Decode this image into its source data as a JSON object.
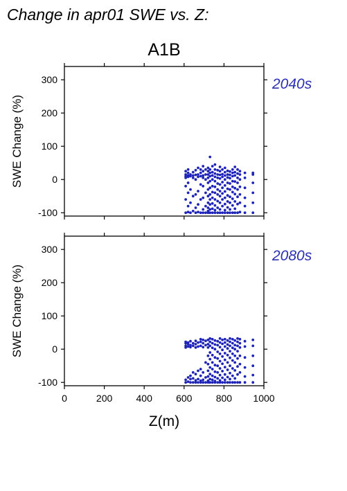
{
  "title": "Change in apr01 SWE vs. Z:",
  "scenario": "A1B",
  "colors": {
    "points": "#1f24b8",
    "period_label": "#2a2fb3",
    "axes": "#000000"
  },
  "chart_data": [
    {
      "type": "scatter",
      "period": "2040s",
      "xlabel": "",
      "ylabel": "SWE Change (%)",
      "xlim": [
        0,
        1000
      ],
      "ylim": [
        -110,
        340
      ],
      "x_ticks": [],
      "y_ticks": [
        -100,
        0,
        100,
        200,
        300
      ],
      "grid": false,
      "columns": [
        {
          "x": 608,
          "y": [
            -100,
            -60,
            -20,
            5,
            10,
            15,
            25
          ]
        },
        {
          "x": 620,
          "y": [
            -98,
            -80,
            -40,
            -10,
            8,
            12,
            20,
            30
          ]
        },
        {
          "x": 632,
          "y": [
            -100,
            -70,
            -30,
            10,
            15
          ]
        },
        {
          "x": 645,
          "y": [
            -95,
            -50,
            5,
            12,
            22
          ]
        },
        {
          "x": 658,
          "y": [
            -100,
            -85,
            -45,
            0,
            14,
            28
          ]
        },
        {
          "x": 670,
          "y": [
            -98,
            -75,
            -35,
            8,
            15,
            35
          ]
        },
        {
          "x": 683,
          "y": [
            -100,
            -60,
            -15,
            10,
            20,
            30
          ]
        },
        {
          "x": 695,
          "y": [
            -100,
            -90,
            -55,
            -20,
            5,
            12,
            25,
            40
          ]
        },
        {
          "x": 708,
          "y": [
            -100,
            -80,
            -40,
            0,
            15,
            30
          ]
        },
        {
          "x": 720,
          "y": [
            -100,
            -95,
            -85,
            -70,
            -50,
            -30,
            -10,
            5,
            15,
            25,
            35
          ]
        },
        {
          "x": 730,
          "y": [
            -100,
            -90,
            -75,
            -60,
            -45,
            -25,
            -5,
            10,
            20,
            30,
            68
          ]
        },
        {
          "x": 742,
          "y": [
            -100,
            -88,
            -72,
            -55,
            -38,
            -20,
            0,
            12,
            22,
            40
          ]
        },
        {
          "x": 755,
          "y": [
            -100,
            -92,
            -78,
            -60,
            -40,
            -22,
            -5,
            8,
            18,
            30,
            45
          ]
        },
        {
          "x": 768,
          "y": [
            -100,
            -85,
            -65,
            -45,
            -30,
            -12,
            5,
            15,
            28
          ]
        },
        {
          "x": 780,
          "y": [
            -100,
            -90,
            -70,
            -50,
            -35,
            -15,
            3,
            14,
            25,
            38
          ]
        },
        {
          "x": 792,
          "y": [
            -100,
            -80,
            -60,
            -42,
            -25,
            -8,
            8,
            16,
            30
          ]
        },
        {
          "x": 805,
          "y": [
            -100,
            -92,
            -74,
            -55,
            -36,
            -18,
            0,
            12,
            22,
            35
          ]
        },
        {
          "x": 818,
          "y": [
            -100,
            -84,
            -66,
            -48,
            -28,
            -10,
            6,
            15,
            26
          ]
        },
        {
          "x": 830,
          "y": [
            -100,
            -90,
            -70,
            -52,
            -30,
            -12,
            4,
            14,
            24
          ]
        },
        {
          "x": 843,
          "y": [
            -100,
            -78,
            -58,
            -38,
            -22,
            -5,
            10,
            20,
            30
          ]
        },
        {
          "x": 855,
          "y": [
            -100,
            -88,
            -66,
            -44,
            -26,
            -6,
            12,
            22,
            38
          ]
        },
        {
          "x": 868,
          "y": [
            -100,
            -74,
            -52,
            -30,
            -10,
            5,
            18,
            30
          ]
        },
        {
          "x": 880,
          "y": [
            -98,
            -70,
            -45,
            -22,
            0,
            15,
            25
          ]
        },
        {
          "x": 905,
          "y": [
            -100,
            -80,
            -55,
            -25,
            5,
            20
          ]
        },
        {
          "x": 945,
          "y": [
            -100,
            -70,
            -40,
            -10,
            15,
            20
          ]
        }
      ]
    },
    {
      "type": "scatter",
      "period": "2080s",
      "xlabel": "Z(m)",
      "ylabel": "SWE Change (%)",
      "xlim": [
        0,
        1000
      ],
      "ylim": [
        -110,
        340
      ],
      "x_ticks": [
        0,
        200,
        400,
        600,
        800,
        1000
      ],
      "y_ticks": [
        -100,
        0,
        100,
        200,
        300
      ],
      "grid": false,
      "columns": [
        {
          "x": 608,
          "y": [
            -100,
            -92,
            5,
            10,
            18,
            22
          ]
        },
        {
          "x": 620,
          "y": [
            -98,
            -85,
            8,
            15,
            20
          ]
        },
        {
          "x": 632,
          "y": [
            -100,
            -90,
            -80,
            6,
            12,
            24
          ]
        },
        {
          "x": 645,
          "y": [
            -100,
            -88,
            -70,
            10,
            18
          ]
        },
        {
          "x": 658,
          "y": [
            -100,
            -94,
            -75,
            5,
            15,
            25
          ]
        },
        {
          "x": 670,
          "y": [
            -100,
            -90,
            -65,
            8,
            20
          ]
        },
        {
          "x": 683,
          "y": [
            -100,
            -95,
            -80,
            -60,
            10,
            22,
            30
          ]
        },
        {
          "x": 695,
          "y": [
            -100,
            -92,
            -70,
            6,
            18,
            28
          ]
        },
        {
          "x": 708,
          "y": [
            -100,
            -85,
            -40,
            12,
            25
          ]
        },
        {
          "x": 720,
          "y": [
            -100,
            -95,
            -82,
            -65,
            -45,
            -20,
            5,
            15,
            28
          ]
        },
        {
          "x": 730,
          "y": [
            -100,
            -90,
            -75,
            -55,
            -30,
            -10,
            10,
            22,
            32
          ]
        },
        {
          "x": 742,
          "y": [
            -100,
            -92,
            -80,
            -60,
            -40,
            -18,
            4,
            18,
            30
          ]
        },
        {
          "x": 755,
          "y": [
            -100,
            -96,
            -84,
            -68,
            -48,
            -25,
            0,
            14,
            26
          ]
        },
        {
          "x": 768,
          "y": [
            -100,
            -88,
            -70,
            -50,
            -28,
            -8,
            12,
            24
          ]
        },
        {
          "x": 780,
          "y": [
            -100,
            -94,
            -78,
            -58,
            -36,
            -14,
            6,
            20,
            32
          ]
        },
        {
          "x": 792,
          "y": [
            -100,
            -86,
            -66,
            -44,
            -22,
            -2,
            16,
            28
          ]
        },
        {
          "x": 805,
          "y": [
            -100,
            -92,
            -76,
            -54,
            -32,
            -12,
            8,
            20,
            30
          ]
        },
        {
          "x": 818,
          "y": [
            -100,
            -84,
            -62,
            -40,
            -18,
            2,
            14,
            26
          ]
        },
        {
          "x": 830,
          "y": [
            -100,
            -90,
            -72,
            -50,
            -26,
            -6,
            10,
            22,
            32
          ]
        },
        {
          "x": 843,
          "y": [
            -100,
            -80,
            -58,
            -34,
            -14,
            4,
            18,
            30
          ]
        },
        {
          "x": 855,
          "y": [
            -100,
            -88,
            -64,
            -40,
            -20,
            0,
            12,
            26
          ]
        },
        {
          "x": 868,
          "y": [
            -100,
            -76,
            -52,
            -28,
            -6,
            10,
            22,
            32
          ]
        },
        {
          "x": 880,
          "y": [
            -100,
            -70,
            -45,
            -20,
            5,
            18,
            30
          ]
        },
        {
          "x": 905,
          "y": [
            -100,
            -82,
            -55,
            -25,
            8,
            24
          ]
        },
        {
          "x": 945,
          "y": [
            -100,
            -78,
            -50,
            -20,
            10,
            28
          ]
        }
      ]
    }
  ]
}
